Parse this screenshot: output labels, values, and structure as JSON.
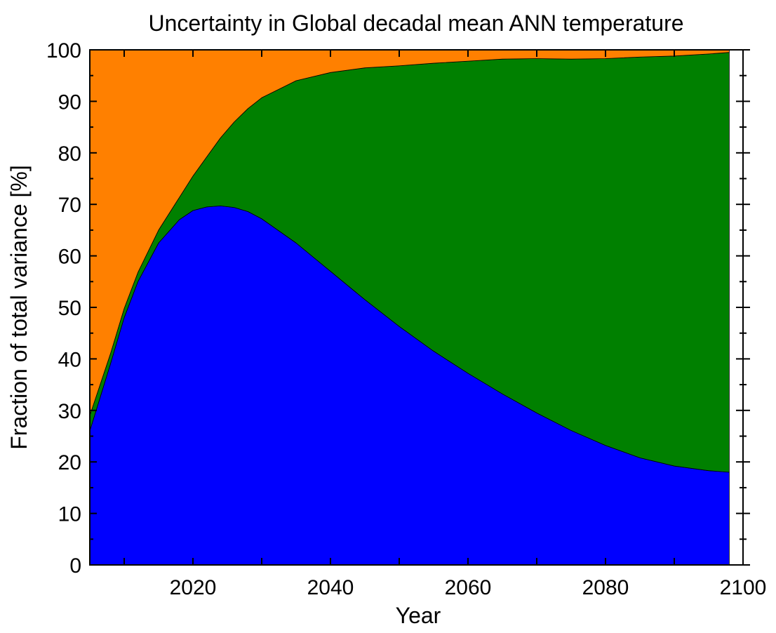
{
  "chart_data": {
    "type": "area",
    "title": "Uncertainty in Global decadal mean ANN temperature",
    "xlabel": "Year",
    "ylabel": "Fraction of total variance  [%]",
    "xlim": [
      2005,
      2100
    ],
    "ylim": [
      0,
      100
    ],
    "x_ticks": [
      "2020",
      "2040",
      "2060",
      "2080",
      "2100"
    ],
    "y_ticks": [
      "0",
      "10",
      "20",
      "30",
      "40",
      "50",
      "60",
      "70",
      "80",
      "90",
      "100"
    ],
    "stacking": "cumulative, bottom to top",
    "x": [
      2005,
      2008,
      2010,
      2012,
      2015,
      2018,
      2020,
      2022,
      2024,
      2026,
      2028,
      2030,
      2035,
      2040,
      2045,
      2050,
      2055,
      2060,
      2065,
      2070,
      2075,
      2080,
      2085,
      2090,
      2095,
      2098
    ],
    "series": [
      {
        "color": "#0000ff",
        "values": [
          26,
          39,
          48,
          55,
          62.5,
          67,
          68.8,
          69.5,
          69.7,
          69.4,
          68.6,
          67.2,
          62.5,
          57,
          51.5,
          46.3,
          41.5,
          37.2,
          33.2,
          29.5,
          26.1,
          23.2,
          20.8,
          19.2,
          18.3,
          18
        ]
      },
      {
        "color": "#008000",
        "values": [
          3,
          2,
          1.8,
          1.8,
          2.5,
          4.3,
          6.7,
          9.7,
          13.2,
          16.6,
          20,
          23.5,
          31.5,
          38.6,
          45,
          50.6,
          55.9,
          60.6,
          65,
          68.8,
          72.1,
          75.1,
          77.8,
          79.6,
          80.9,
          81.5
        ]
      },
      {
        "color": "#ff8000",
        "values": [
          71,
          59,
          50.2,
          43.2,
          35,
          28.7,
          24.5,
          20.8,
          17.1,
          14,
          11.4,
          9.3,
          6,
          4.4,
          3.5,
          3.1,
          2.6,
          2.2,
          1.8,
          1.7,
          1.8,
          1.7,
          1.4,
          1.2,
          0.8,
          0.5
        ]
      }
    ],
    "grid": false,
    "legend": "none"
  }
}
